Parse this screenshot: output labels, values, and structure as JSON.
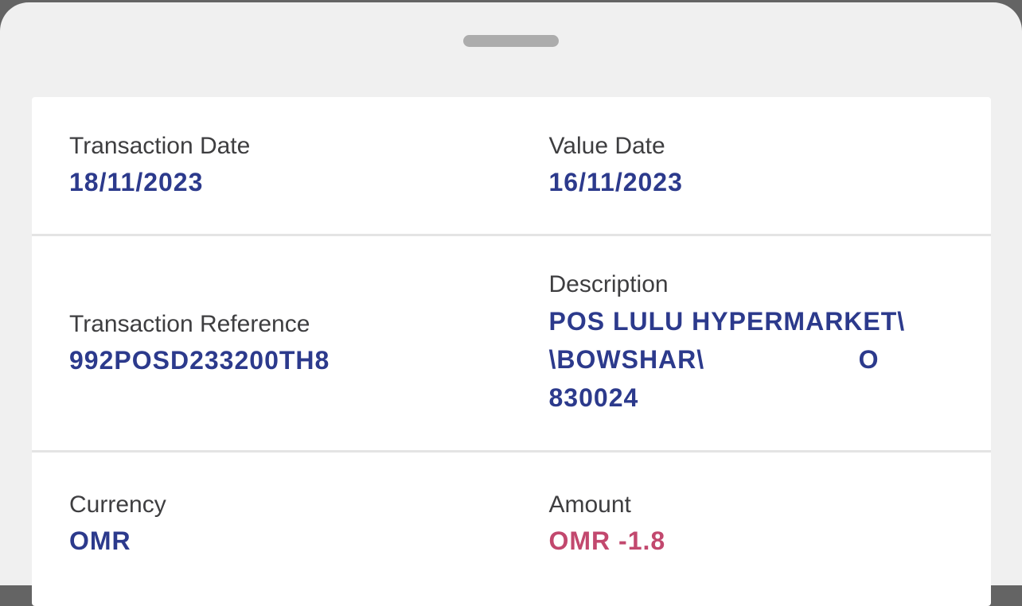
{
  "sheet": {
    "type": "transaction-details-bottom-sheet",
    "colors": {
      "backdrop_dim": "#646464",
      "sheet_background": "#F0F0F0",
      "card_background": "#FFFFFF",
      "divider": "#E4E4E4",
      "drag_handle": "#ACACAC",
      "label_text": "#3E3E40",
      "value_text_navy": "#2C3A8C",
      "amount_negative": "#C2486E"
    }
  },
  "fields": {
    "transaction_date": {
      "label": "Transaction Date",
      "value": "18/11/2023"
    },
    "value_date": {
      "label": "Value Date",
      "value": "16/11/2023"
    },
    "transaction_reference": {
      "label": "Transaction Reference",
      "value": "992POSD233200TH8"
    },
    "description": {
      "label": "Description",
      "full_text": "POS LULU HYPERMARKET\\\\BOWSHAR\\ O 830024",
      "line1": "POS LULU HYPERMARKET\\",
      "line2_left": "\\BOWSHAR\\",
      "line2_right": "O",
      "line3": "830024"
    },
    "currency": {
      "label": "Currency",
      "value": "OMR"
    },
    "amount": {
      "label": "Amount",
      "value": "OMR -1.8",
      "sign": "negative"
    }
  }
}
